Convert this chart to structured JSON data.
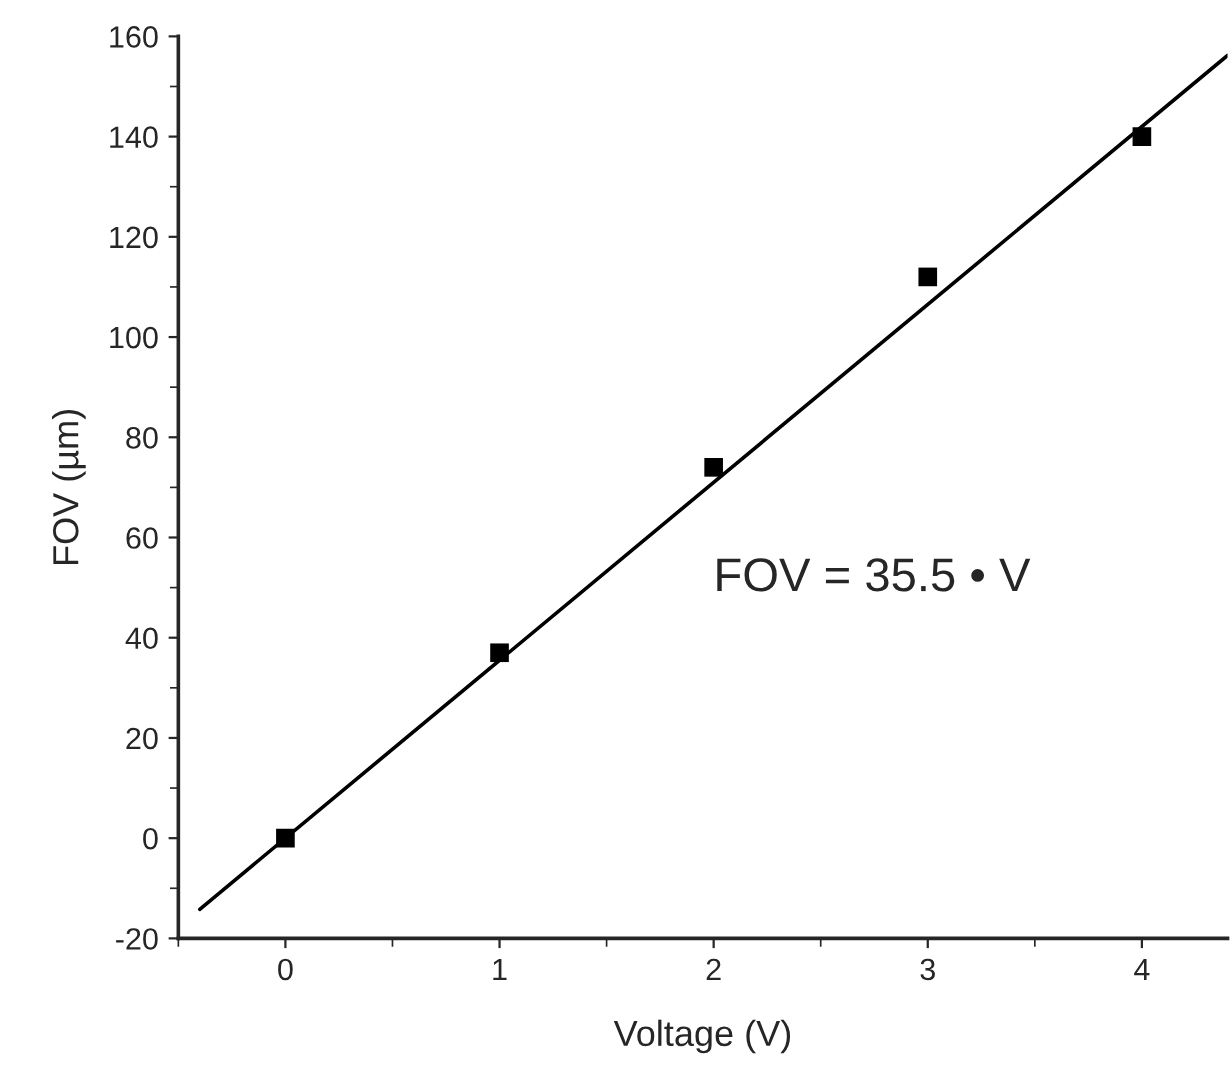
{
  "chart_data": {
    "type": "scatter",
    "xlabel": "Voltage (V)",
    "ylabel": "FOV (µm)",
    "x": [
      0,
      1,
      2,
      3,
      4
    ],
    "series": [
      {
        "color": "#000000",
        "marker": "square",
        "values": [
          0,
          37,
          74,
          112,
          140
        ]
      },
      {
        "type": "line",
        "color": "#000000",
        "marker": "none",
        "line_style": "solid",
        "x": [
          -0.4,
          4.4
        ],
        "values": [
          -14.2,
          156.2
        ]
      }
    ],
    "annotations": [
      "FOV = 35.5 • V"
    ],
    "xlim": [
      -0.5,
      4.4
    ],
    "xticks": [
      0,
      1,
      2,
      3,
      4
    ],
    "ylim": [
      -20,
      160
    ],
    "yticks": [
      -20,
      0,
      20,
      40,
      60,
      80,
      100,
      120,
      140,
      160
    ],
    "grid": false,
    "legend": false
  }
}
